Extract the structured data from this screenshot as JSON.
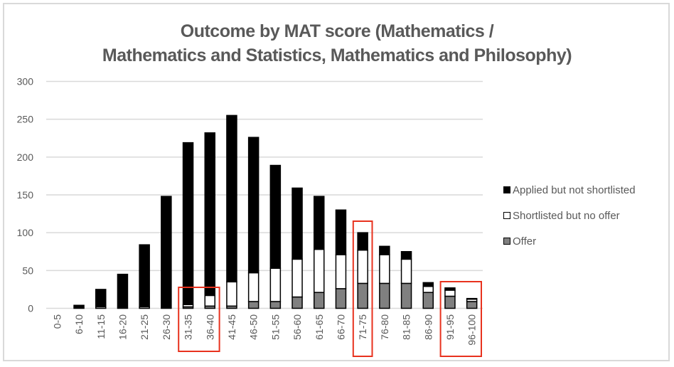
{
  "chart_data": {
    "type": "bar",
    "stacked": true,
    "title": "Outcome by MAT score (Mathematics / Mathematics and Statistics, Mathematics and Philosophy)",
    "title_lines": [
      "Outcome by MAT score (Mathematics /",
      "Mathematics and Statistics, Mathematics and Philosophy)"
    ],
    "xlabel": "",
    "ylabel": "",
    "ylim": [
      0,
      300
    ],
    "yticks": [
      0,
      50,
      100,
      150,
      200,
      250,
      300
    ],
    "grid": true,
    "legend_position": "right",
    "categories": [
      "0-5",
      "6-10",
      "11-15",
      "16-20",
      "21-25",
      "26-30",
      "31-35",
      "36-40",
      "41-45",
      "46-50",
      "51-55",
      "56-60",
      "61-65",
      "66-70",
      "71-75",
      "76-80",
      "81-85",
      "86-90",
      "91-95",
      "96-100"
    ],
    "series": [
      {
        "name": "Offer",
        "color": "#808080",
        "values": [
          0,
          0,
          0,
          0,
          0,
          0,
          2,
          3,
          3,
          9,
          9,
          15,
          21,
          26,
          33,
          33,
          33,
          21,
          16,
          9
        ]
      },
      {
        "name": "Shortlisted but no offer",
        "color": "#ffffff",
        "values": [
          0,
          0,
          2,
          0,
          2,
          0,
          3,
          14,
          32,
          38,
          44,
          50,
          57,
          45,
          44,
          38,
          32,
          8,
          8,
          3
        ]
      },
      {
        "name": "Applied but not shortlisted",
        "color": "#000000",
        "values": [
          0,
          4,
          23,
          45,
          82,
          148,
          214,
          215,
          220,
          179,
          136,
          94,
          70,
          59,
          23,
          11,
          10,
          5,
          3,
          1
        ]
      }
    ],
    "totals": [
      0,
      4,
      25,
      45,
      84,
      148,
      219,
      232,
      255,
      226,
      189,
      159,
      148,
      130,
      100,
      82,
      75,
      34,
      27,
      13
    ],
    "annotations": [
      {
        "type": "highlight-box",
        "color": "#e8321e",
        "categories": [
          "31-35",
          "36-40"
        ]
      },
      {
        "type": "highlight-box",
        "color": "#e8321e",
        "categories": [
          "71-75"
        ]
      },
      {
        "type": "highlight-box",
        "color": "#e8321e",
        "categories": [
          "91-95",
          "96-100"
        ]
      }
    ]
  },
  "legend": {
    "items": [
      {
        "label": "Applied but not shortlisted",
        "color": "#000000"
      },
      {
        "label": "Shortlisted but no offer",
        "color": "#ffffff"
      },
      {
        "label": "Offer",
        "color": "#808080"
      }
    ]
  }
}
